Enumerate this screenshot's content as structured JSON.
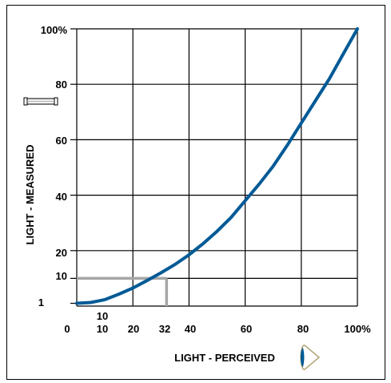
{
  "chart_data": {
    "type": "line",
    "title": "",
    "xlabel": "LIGHT - PERCEIVED",
    "ylabel": "LIGHT - MEASURED",
    "xlim": [
      0,
      100
    ],
    "ylim": [
      0,
      100
    ],
    "grid": true,
    "x_tick_labels": [
      "0",
      "10",
      "10",
      "20",
      "32",
      "40",
      "60",
      "80",
      "100%"
    ],
    "y_tick_labels": [
      "1",
      "10",
      "20",
      "40",
      "60",
      "80",
      "100%"
    ],
    "series": [
      {
        "x": [
          0,
          5,
          10,
          15,
          20,
          25,
          30,
          35,
          40,
          45,
          50,
          55,
          60,
          65,
          70,
          75,
          80,
          85,
          90,
          95,
          100
        ],
        "y": [
          1,
          1.3,
          2.3,
          4.3,
          6.5,
          9.2,
          12,
          15,
          18.5,
          22.5,
          27,
          32,
          38,
          44,
          50.5,
          58,
          66,
          74,
          82,
          91,
          100
        ]
      }
    ],
    "annotation": {
      "x": 32,
      "y": 10,
      "color": "#a6a6a6"
    },
    "curve_color": "#005a96",
    "icons": [
      "fluorescent-tube-icon",
      "eye-icon"
    ]
  }
}
